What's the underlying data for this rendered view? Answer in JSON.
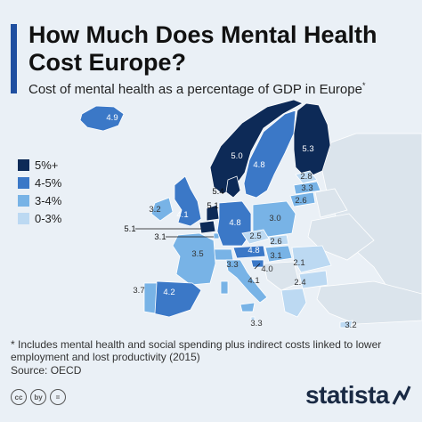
{
  "header": {
    "title": "How Much Does Mental Health Cost Europe?",
    "subtitle": "Cost of mental health as a percentage of GDP in Europe",
    "subtitle_mark": "*"
  },
  "colors": {
    "c5plus": "#0d2a57",
    "c45": "#3b78c7",
    "c34": "#78b3e6",
    "c03": "#bcd9f2",
    "land": "#dbe4ec",
    "sea": "#eaf0f6",
    "accent": "#1f4fa0"
  },
  "legend": {
    "items": [
      {
        "label": "5%+",
        "color": "#0d2a57"
      },
      {
        "label": "4-5%",
        "color": "#3b78c7"
      },
      {
        "label": "3-4%",
        "color": "#78b3e6"
      },
      {
        "label": "0-3%",
        "color": "#bcd9f2"
      }
    ]
  },
  "labels": [
    "4.9",
    "5.0",
    "5.3",
    "4.8",
    "2.8",
    "3.3",
    "2.6",
    "5.4",
    "3.2",
    "4.1",
    "5.1",
    "3.0",
    "4.8",
    "5.1",
    "3.1",
    "2.5",
    "2.6",
    "3.5",
    "4.8",
    "3.1",
    "3.3",
    "4.0",
    "2.1",
    "4.1",
    "3.7",
    "4.2",
    "2.4",
    "3.3",
    "3.2"
  ],
  "footer": {
    "note": "* Includes mental health and social spending plus indirect costs linked to lower employment and lost productivity (2015)",
    "source": "Source: OECD",
    "cc_icons": [
      "cc",
      "by",
      "="
    ],
    "brand": "statista"
  }
}
